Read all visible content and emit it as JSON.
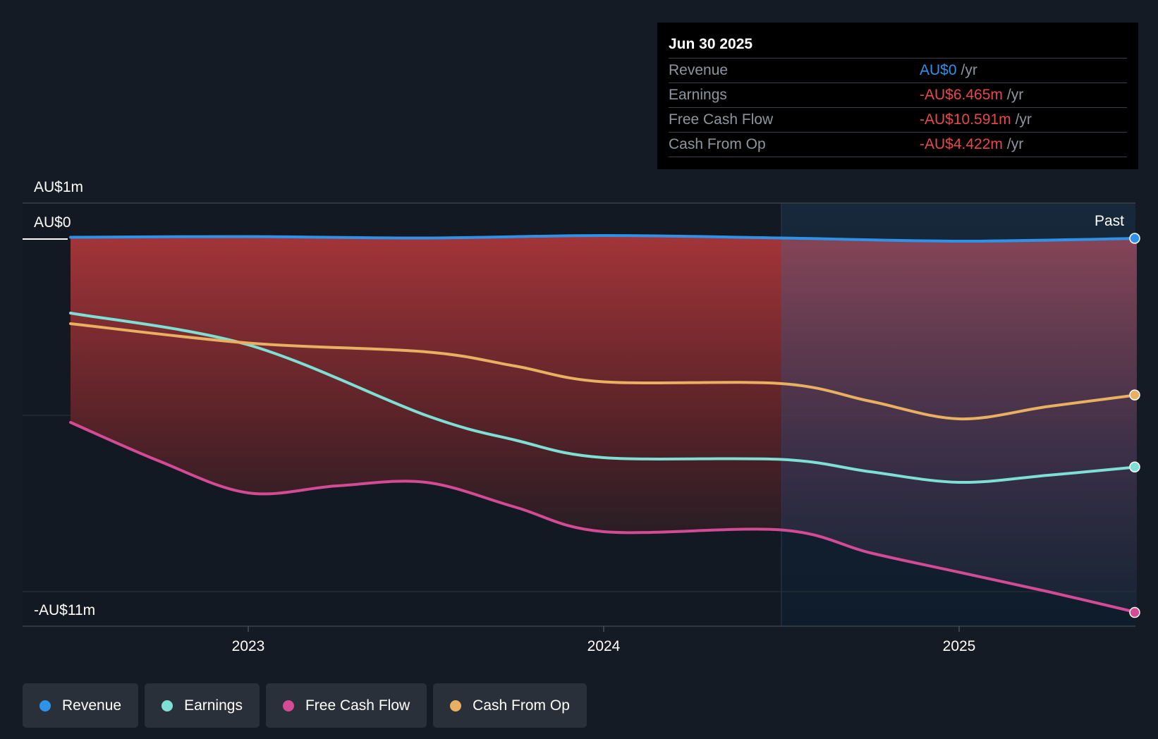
{
  "chart_data": {
    "type": "line",
    "title": "",
    "y_axis": {
      "top_label": "AU$1m",
      "zero_label": "AU$0",
      "bottom_label": "-AU$11m",
      "ylim": [
        -11,
        1
      ]
    },
    "x_axis": {
      "ticks": [
        "2023",
        "2024",
        "2025"
      ],
      "tick_values": [
        2023.0,
        2024.0,
        2025.0
      ],
      "xlim": [
        2022.5,
        2025.5
      ]
    },
    "past_label": "Past",
    "forecast_start": 2024.5,
    "series": [
      {
        "name": "Revenue",
        "color": "#2e93e8",
        "x": [
          2022.5,
          2023.0,
          2023.5,
          2024.0,
          2024.5,
          2025.0,
          2025.5
        ],
        "values": [
          0.05,
          0.07,
          0.03,
          0.1,
          0.03,
          -0.06,
          0.02
        ]
      },
      {
        "name": "Earnings",
        "color": "#7ee0d4",
        "x": [
          2022.5,
          2023.0,
          2023.5,
          2023.75,
          2024.0,
          2024.5,
          2024.75,
          2025.0,
          2025.25,
          2025.5
        ],
        "values": [
          -2.1,
          -3.0,
          -5.0,
          -5.7,
          -6.2,
          -6.25,
          -6.6,
          -6.9,
          -6.7,
          -6.465
        ]
      },
      {
        "name": "Free Cash Flow",
        "color": "#d44b95",
        "x": [
          2022.5,
          2022.75,
          2023.0,
          2023.25,
          2023.5,
          2023.75,
          2024.0,
          2024.5,
          2024.75,
          2025.0,
          2025.25,
          2025.5
        ],
        "values": [
          -5.2,
          -6.3,
          -7.2,
          -7.0,
          -6.9,
          -7.6,
          -8.3,
          -8.25,
          -8.9,
          -9.45,
          -10.0,
          -10.591
        ]
      },
      {
        "name": "Cash From Op",
        "color": "#e8b060",
        "x": [
          2022.5,
          2023.0,
          2023.5,
          2023.75,
          2024.0,
          2024.5,
          2024.75,
          2025.0,
          2025.25,
          2025.5
        ],
        "values": [
          -2.4,
          -2.95,
          -3.2,
          -3.6,
          -4.05,
          -4.1,
          -4.6,
          -5.1,
          -4.75,
          -4.422
        ]
      }
    ]
  },
  "tooltip": {
    "date": "Jun 30 2025",
    "rows": [
      {
        "label": "Revenue",
        "value": "AU$0",
        "unit": "/yr"
      },
      {
        "label": "Earnings",
        "value": "-AU$6.465m",
        "unit": "/yr"
      },
      {
        "label": "Free Cash Flow",
        "value": "-AU$10.591m",
        "unit": "/yr"
      },
      {
        "label": "Cash From Op",
        "value": "-AU$4.422m",
        "unit": "/yr"
      }
    ]
  },
  "legend": [
    {
      "label": "Revenue",
      "color": "#2e93e8"
    },
    {
      "label": "Earnings",
      "color": "#7ee0d4"
    },
    {
      "label": "Free Cash Flow",
      "color": "#d44b95"
    },
    {
      "label": "Cash From Op",
      "color": "#e8b060"
    }
  ]
}
